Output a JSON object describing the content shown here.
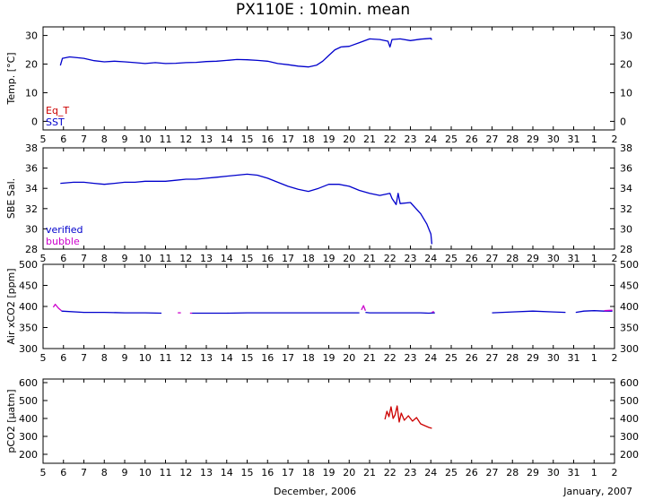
{
  "chart_data": {
    "title": "PX110E : 10min. mean",
    "type": "line",
    "x_tick_labels": [
      "5",
      "6",
      "7",
      "8",
      "9",
      "10",
      "11",
      "12",
      "13",
      "14",
      "15",
      "16",
      "17",
      "18",
      "19",
      "20",
      "21",
      "22",
      "23",
      "24",
      "25",
      "26",
      "27",
      "28",
      "29",
      "30",
      "31",
      "1",
      "2"
    ],
    "x_domain_days": [
      5,
      33
    ],
    "x_footer_left": "December, 2006",
    "x_footer_right": "January, 2007",
    "panels": [
      {
        "ylabel": "Temp. [°C]",
        "ylim": [
          -3,
          33
        ],
        "yticks": [
          0,
          10,
          20,
          30
        ],
        "legend": [
          {
            "name": "Eq_T",
            "color": "#cc0000"
          },
          {
            "name": "SST",
            "color": "#0000cc"
          }
        ],
        "series": [
          {
            "name": "SST",
            "color": "#0000cc",
            "segments": [
              [
                [
                  5.85,
                  19.5
                ],
                [
                  5.95,
                  22.0
                ],
                [
                  6.3,
                  22.5
                ],
                [
                  7,
                  22.0
                ],
                [
                  7.5,
                  21.2
                ],
                [
                  8,
                  20.8
                ],
                [
                  8.5,
                  21.0
                ],
                [
                  9,
                  20.8
                ],
                [
                  9.5,
                  20.5
                ],
                [
                  10,
                  20.2
                ],
                [
                  10.5,
                  20.5
                ],
                [
                  11,
                  20.2
                ],
                [
                  11.5,
                  20.3
                ],
                [
                  12,
                  20.5
                ],
                [
                  12.5,
                  20.6
                ],
                [
                  13,
                  20.9
                ],
                [
                  13.5,
                  21.0
                ],
                [
                  14,
                  21.3
                ],
                [
                  14.5,
                  21.6
                ],
                [
                  15,
                  21.5
                ],
                [
                  15.5,
                  21.3
                ],
                [
                  16,
                  21.0
                ],
                [
                  16.5,
                  20.2
                ],
                [
                  17,
                  19.8
                ],
                [
                  17.5,
                  19.3
                ],
                [
                  18,
                  19.0
                ],
                [
                  18.4,
                  19.6
                ],
                [
                  18.7,
                  21.0
                ],
                [
                  19,
                  23.0
                ],
                [
                  19.3,
                  25.0
                ],
                [
                  19.6,
                  26.0
                ],
                [
                  20,
                  26.2
                ],
                [
                  20.5,
                  27.5
                ],
                [
                  21,
                  28.8
                ],
                [
                  21.5,
                  28.6
                ],
                [
                  21.9,
                  28.0
                ],
                [
                  22.0,
                  26.0
                ],
                [
                  22.1,
                  28.6
                ],
                [
                  22.5,
                  28.8
                ],
                [
                  23,
                  28.2
                ],
                [
                  23.5,
                  28.7
                ],
                [
                  24,
                  29.0
                ],
                [
                  24.05,
                  28.5
                ]
              ]
            ]
          }
        ]
      },
      {
        "ylabel": "SBE Sal.",
        "ylim": [
          28,
          38
        ],
        "yticks": [
          28,
          30,
          32,
          34,
          36,
          38
        ],
        "legend": [
          {
            "name": "verified",
            "color": "#0000cc"
          },
          {
            "name": "bubble",
            "color": "#cc00cc"
          }
        ],
        "series": [
          {
            "name": "verified",
            "color": "#0000cc",
            "segments": [
              [
                [
                  5.85,
                  34.5
                ],
                [
                  6.5,
                  34.6
                ],
                [
                  7,
                  34.6
                ],
                [
                  7.5,
                  34.5
                ],
                [
                  8,
                  34.4
                ],
                [
                  8.5,
                  34.5
                ],
                [
                  9,
                  34.6
                ],
                [
                  9.5,
                  34.6
                ],
                [
                  10,
                  34.7
                ],
                [
                  10.5,
                  34.7
                ],
                [
                  11,
                  34.7
                ],
                [
                  11.5,
                  34.8
                ],
                [
                  12,
                  34.9
                ],
                [
                  12.5,
                  34.9
                ],
                [
                  13,
                  35.0
                ],
                [
                  13.5,
                  35.1
                ],
                [
                  14,
                  35.2
                ],
                [
                  14.5,
                  35.3
                ],
                [
                  15,
                  35.4
                ],
                [
                  15.5,
                  35.3
                ],
                [
                  16,
                  35.0
                ],
                [
                  16.5,
                  34.6
                ],
                [
                  17,
                  34.2
                ],
                [
                  17.5,
                  33.9
                ],
                [
                  18,
                  33.7
                ],
                [
                  18.5,
                  34.0
                ],
                [
                  19,
                  34.4
                ],
                [
                  19.5,
                  34.4
                ],
                [
                  20,
                  34.2
                ],
                [
                  20.5,
                  33.8
                ],
                [
                  21,
                  33.5
                ],
                [
                  21.5,
                  33.3
                ],
                [
                  22,
                  33.5
                ],
                [
                  22.1,
                  33.0
                ],
                [
                  22.3,
                  32.4
                ],
                [
                  22.4,
                  33.5
                ],
                [
                  22.5,
                  32.5
                ],
                [
                  23,
                  32.6
                ],
                [
                  23.5,
                  31.5
                ],
                [
                  23.8,
                  30.5
                ],
                [
                  24.0,
                  29.5
                ],
                [
                  24.05,
                  28.5
                ]
              ]
            ]
          }
        ]
      },
      {
        "ylabel": "Air xCO2 [ppm]",
        "ylim": [
          300,
          500
        ],
        "yticks": [
          300,
          350,
          400,
          450,
          500
        ],
        "legend": [],
        "series": [
          {
            "name": "",
            "color": "#0000cc",
            "segments": [
              [
                [
                  5.9,
                  389
                ],
                [
                  7,
                  386
                ],
                [
                  8,
                  386
                ],
                [
                  9,
                  385
                ],
                [
                  10,
                  385
                ],
                [
                  10.8,
                  384
                ]
              ],
              [
                [
                  12.3,
                  384
                ],
                [
                  13,
                  384
                ],
                [
                  14,
                  384
                ],
                [
                  15,
                  385
                ],
                [
                  16,
                  385
                ],
                [
                  17,
                  385
                ],
                [
                  18,
                  385
                ],
                [
                  19,
                  385
                ],
                [
                  20,
                  385
                ],
                [
                  20.5,
                  385
                ]
              ],
              [
                [
                  20.8,
                  386
                ],
                [
                  21,
                  385
                ],
                [
                  22,
                  385
                ],
                [
                  23,
                  385
                ],
                [
                  23.5,
                  385
                ],
                [
                  23.9,
                  384
                ],
                [
                  24.2,
                  385
                ]
              ],
              [
                [
                  27.0,
                  385
                ],
                [
                  28,
                  387
                ],
                [
                  29,
                  389
                ],
                [
                  30,
                  387
                ],
                [
                  30.6,
                  386
                ]
              ],
              [
                [
                  31.1,
                  386
                ],
                [
                  31.5,
                  389
                ],
                [
                  32,
                  390
                ],
                [
                  32.5,
                  389
                ],
                [
                  32.9,
                  389
                ]
              ]
            ]
          },
          {
            "name": "",
            "color": "#cc00cc",
            "segments": [
              [
                [
                  5.5,
                  398
                ],
                [
                  5.6,
                  405
                ],
                [
                  5.75,
                  396
                ],
                [
                  5.9,
                  390
                ]
              ],
              [
                [
                  11.6,
                  385
                ],
                [
                  11.75,
                  385
                ]
              ],
              [
                [
                  12.2,
                  384
                ],
                [
                  12.3,
                  384
                ]
              ],
              [
                [
                  20.6,
                  392
                ],
                [
                  20.7,
                  402
                ],
                [
                  20.8,
                  390
                ]
              ],
              [
                [
                  24.05,
                  386
                ],
                [
                  24.15,
                  388
                ]
              ],
              [
                [
                  32.5,
                  390
                ],
                [
                  32.9,
                  391
                ]
              ]
            ]
          }
        ]
      },
      {
        "ylabel": "pCO2 [µatm]",
        "ylim": [
          150,
          620
        ],
        "yticks": [
          200,
          300,
          400,
          500,
          600
        ],
        "legend": [],
        "series": [
          {
            "name": "",
            "color": "#cc0000",
            "segments": [
              [
                [
                  21.75,
                  395
                ],
                [
                  21.85,
                  440
                ],
                [
                  21.95,
                  410
                ],
                [
                  22.05,
                  465
                ],
                [
                  22.15,
                  400
                ],
                [
                  22.25,
                  420
                ],
                [
                  22.35,
                  470
                ],
                [
                  22.45,
                  380
                ],
                [
                  22.55,
                  430
                ],
                [
                  22.7,
                  390
                ],
                [
                  22.9,
                  415
                ],
                [
                  23.1,
                  385
                ],
                [
                  23.3,
                  405
                ],
                [
                  23.5,
                  370
                ],
                [
                  23.7,
                  360
                ],
                [
                  23.9,
                  350
                ],
                [
                  24.05,
                  345
                ]
              ]
            ]
          }
        ]
      }
    ]
  }
}
